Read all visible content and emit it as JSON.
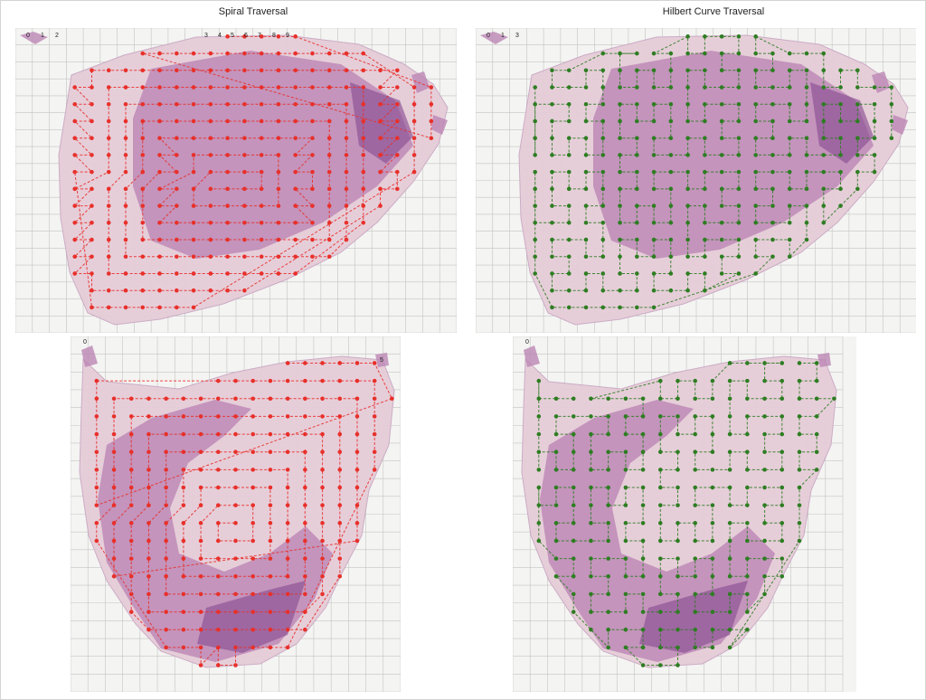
{
  "titles": {
    "left": "Spiral Traversal",
    "right": "Hilbert Curve Traversal"
  },
  "colors": {
    "spiral": "#e8302a",
    "hilbert": "#2e7d22",
    "grid": "#c4c4c4",
    "tissue_light": "#e6ccd8",
    "tissue_mid": "#bb86b4",
    "tissue_dark": "#8a4f92",
    "background": "#f4f4f2"
  },
  "panels": [
    {
      "id": "p1",
      "method": "spiral",
      "tissue": "A",
      "labels": [
        "0",
        "1",
        "2",
        "3",
        "4",
        "5",
        "6",
        "7",
        "8",
        "9"
      ]
    },
    {
      "id": "p2",
      "method": "hilbert",
      "tissue": "A",
      "labels": [
        "0",
        "1",
        "3"
      ]
    },
    {
      "id": "p3",
      "method": "spiral",
      "tissue": "B",
      "labels": [
        "0",
        "5"
      ]
    },
    {
      "id": "p4",
      "method": "hilbert",
      "tissue": "B",
      "labels": [
        "0"
      ]
    }
  ]
}
